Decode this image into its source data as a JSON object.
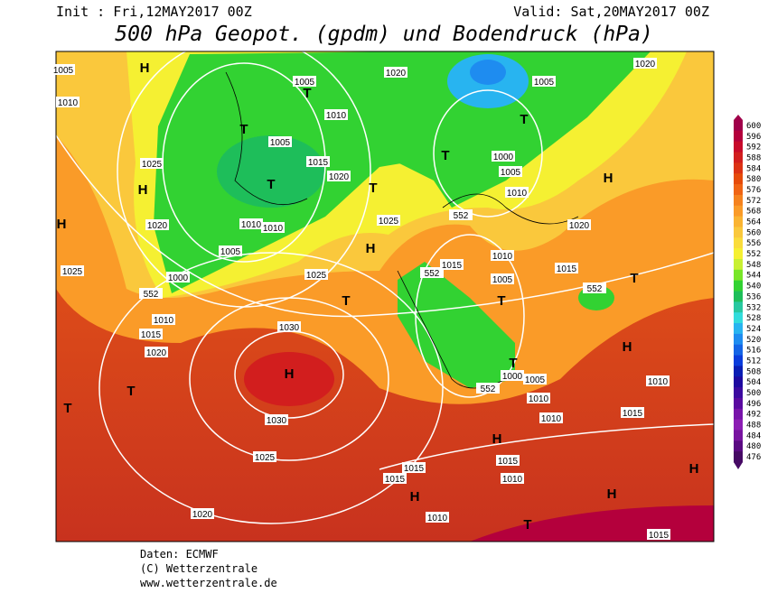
{
  "header": {
    "init": "Init : Fri,12MAY2017 00Z",
    "valid": "Valid: Sat,20MAY2017 00Z",
    "title": "500 hPa Geopot. (gpdm) und Bodendruck (hPa)"
  },
  "map_labels": [
    "H",
    "1005",
    "1010",
    "1005",
    "T",
    "1010",
    "T",
    "1005",
    "1015",
    "T",
    "1020",
    "1025",
    "H",
    "1020",
    "1010",
    "1010",
    "1005",
    "1025",
    "T",
    "H",
    "1020",
    "1005",
    "T",
    "T",
    "1000",
    "1005",
    "1010",
    "552",
    "1020",
    "H",
    "1020",
    "H",
    "1025",
    "1000",
    "552",
    "1010",
    "1015",
    "1020",
    "1025",
    "T",
    "552",
    "1015",
    "1010",
    "1015",
    "1005",
    "T",
    "552",
    "T",
    "H",
    "1030",
    "H",
    "T",
    "T",
    "1030",
    "1025",
    "1000",
    "1005",
    "552",
    "1010",
    "1010",
    "1015",
    "1010",
    "H",
    "1015",
    "1015",
    "1015",
    "1010",
    "H",
    "H",
    "H",
    "1020",
    "1010",
    "T",
    "1015",
    "T"
  ],
  "colorbar": {
    "levels": [
      600,
      596,
      592,
      588,
      584,
      580,
      576,
      572,
      568,
      564,
      560,
      556,
      552,
      548,
      544,
      540,
      536,
      532,
      528,
      524,
      520,
      516,
      512,
      508,
      504,
      500,
      496,
      492,
      488,
      484,
      480,
      476
    ],
    "colors": [
      "#a0004a",
      "#b4003c",
      "#c80a2a",
      "#d21e1e",
      "#dc3214",
      "#e64b0a",
      "#f06414",
      "#f5821e",
      "#fa9b28",
      "#fab432",
      "#fac83c",
      "#fadc3c",
      "#f5f032",
      "#c8f032",
      "#78e628",
      "#32d232",
      "#1ebe5a",
      "#28c8a0",
      "#32dcdc",
      "#28b4f0",
      "#1e8cf0",
      "#1464e6",
      "#0a3cdc",
      "#0a1eb4",
      "#1e0aa0",
      "#3c0aa0",
      "#5a0aa0",
      "#7814aa",
      "#8c1eb4",
      "#7814a0",
      "#5a0a82",
      "#460a64"
    ]
  },
  "footer": {
    "source": "Daten: ECMWF",
    "copyright": "(C) Wetterzentrale",
    "url": "www.wetterzentrale.de"
  }
}
